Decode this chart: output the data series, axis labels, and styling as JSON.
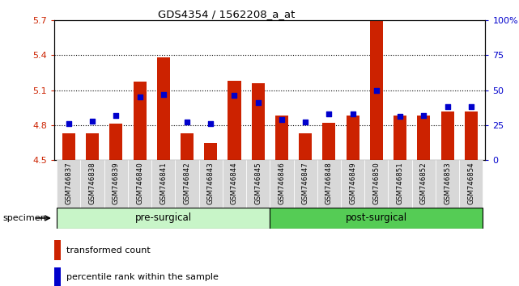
{
  "title": "GDS4354 / 1562208_a_at",
  "samples": [
    "GSM746837",
    "GSM746838",
    "GSM746839",
    "GSM746840",
    "GSM746841",
    "GSM746842",
    "GSM746843",
    "GSM746844",
    "GSM746845",
    "GSM746846",
    "GSM746847",
    "GSM746848",
    "GSM746849",
    "GSM746850",
    "GSM746851",
    "GSM746852",
    "GSM746853",
    "GSM746854"
  ],
  "red_values": [
    4.73,
    4.73,
    4.81,
    5.17,
    5.38,
    4.73,
    4.65,
    5.18,
    5.16,
    4.88,
    4.73,
    4.82,
    4.88,
    5.69,
    4.88,
    4.88,
    4.92,
    4.92
  ],
  "blue_values": [
    26,
    28,
    32,
    45,
    47,
    27,
    26,
    46,
    41,
    29,
    27,
    33,
    33,
    50,
    31,
    32,
    38,
    38
  ],
  "ymin": 4.5,
  "ymax": 5.7,
  "y_ticks": [
    4.5,
    4.8,
    5.1,
    5.4,
    5.7
  ],
  "y_right_ticks": [
    0,
    25,
    50,
    75,
    100
  ],
  "groups": [
    {
      "label": "pre-surgical",
      "start": 0,
      "end": 8,
      "color": "#c8f5c8"
    },
    {
      "label": "post-surgical",
      "start": 9,
      "end": 17,
      "color": "#55cc55"
    }
  ],
  "bar_color": "#cc2200",
  "dot_color": "#0000cc",
  "bar_bottom": 4.5,
  "tick_bg_color": "#d8d8d8",
  "left_axis_color": "#cc2200",
  "right_axis_color": "#0000cc",
  "legend_red_label": "transformed count",
  "legend_blue_label": "percentile rank within the sample",
  "bar_width": 0.55,
  "specimen_label": "specimen"
}
